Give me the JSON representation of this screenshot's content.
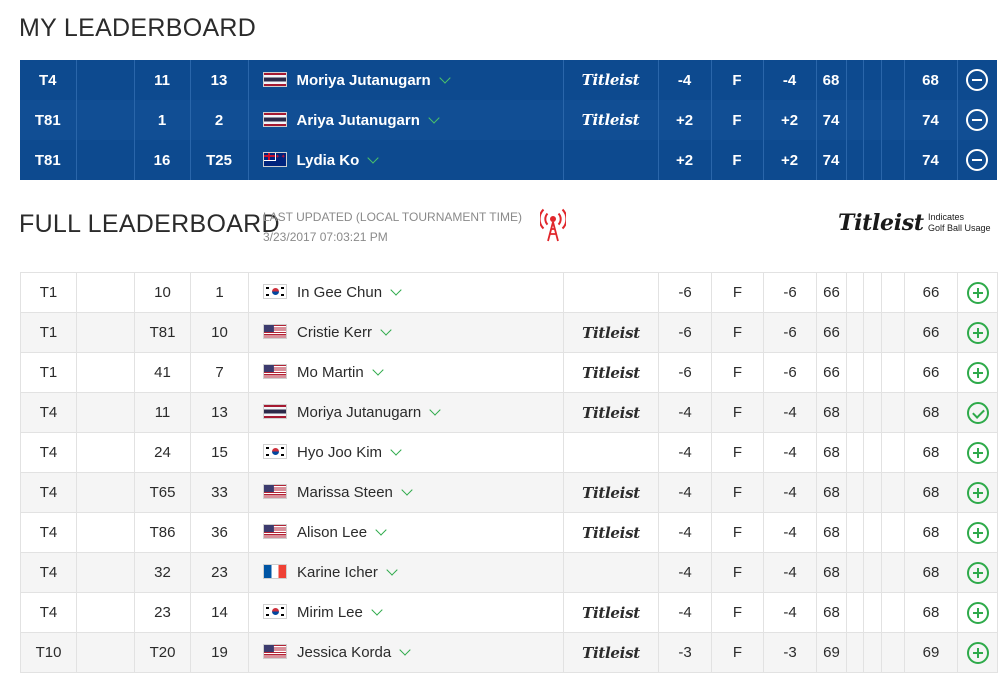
{
  "my_leaderboard": {
    "title": "MY LEADERBOARD",
    "rows": [
      {
        "pos": "T4",
        "c2": "",
        "c3": "11",
        "c4": "13",
        "flag": "th",
        "name": "Moriya Jutanugarn",
        "ball": "Titleist",
        "today": "-4",
        "thru": "F",
        "total": "-4",
        "r1": "68",
        "r2": "",
        "r3": "",
        "r4": "",
        "strokes": "68",
        "action": "minus-circle-icon"
      },
      {
        "pos": "T81",
        "c2": "",
        "c3": "1",
        "c4": "2",
        "flag": "th",
        "name": "Ariya Jutanugarn",
        "ball": "Titleist",
        "today": "+2",
        "thru": "F",
        "total": "+2",
        "r1": "74",
        "r2": "",
        "r3": "",
        "r4": "",
        "strokes": "74",
        "action": "minus-circle-icon"
      },
      {
        "pos": "T81",
        "c2": "",
        "c3": "16",
        "c4": "T25",
        "flag": "nz",
        "name": "Lydia Ko",
        "ball": "",
        "today": "+2",
        "thru": "F",
        "total": "+2",
        "r1": "74",
        "r2": "",
        "r3": "",
        "r4": "",
        "strokes": "74",
        "action": "minus-circle-icon"
      }
    ]
  },
  "full_leaderboard": {
    "title": "FULL LEADERBOARD",
    "last_updated_label": "LAST UPDATED (LOCAL TOURNAMENT TIME)",
    "last_updated_value": "3/23/2017 07:03:21 PM",
    "legend_brand": "Titleist",
    "legend_line1": "Indicates",
    "legend_line2": "Golf Ball Usage",
    "rows": [
      {
        "pos": "T1",
        "c2": "",
        "c3": "10",
        "c4": "1",
        "flag": "kr",
        "name": "In Gee Chun",
        "ball": "",
        "today": "-6",
        "thru": "F",
        "total": "-6",
        "r1": "66",
        "r2": "",
        "r3": "",
        "r4": "",
        "strokes": "66",
        "action": "plus"
      },
      {
        "pos": "T1",
        "c2": "",
        "c3": "T81",
        "c4": "10",
        "flag": "us",
        "name": "Cristie Kerr",
        "ball": "Titleist",
        "today": "-6",
        "thru": "F",
        "total": "-6",
        "r1": "66",
        "r2": "",
        "r3": "",
        "r4": "",
        "strokes": "66",
        "action": "plus"
      },
      {
        "pos": "T1",
        "c2": "",
        "c3": "41",
        "c4": "7",
        "flag": "us",
        "name": "Mo Martin",
        "ball": "Titleist",
        "today": "-6",
        "thru": "F",
        "total": "-6",
        "r1": "66",
        "r2": "",
        "r3": "",
        "r4": "",
        "strokes": "66",
        "action": "plus"
      },
      {
        "pos": "T4",
        "c2": "",
        "c3": "11",
        "c4": "13",
        "flag": "th",
        "name": "Moriya Jutanugarn",
        "ball": "Titleist",
        "today": "-4",
        "thru": "F",
        "total": "-4",
        "r1": "68",
        "r2": "",
        "r3": "",
        "r4": "",
        "strokes": "68",
        "action": "check"
      },
      {
        "pos": "T4",
        "c2": "",
        "c3": "24",
        "c4": "15",
        "flag": "kr",
        "name": "Hyo Joo Kim",
        "ball": "",
        "today": "-4",
        "thru": "F",
        "total": "-4",
        "r1": "68",
        "r2": "",
        "r3": "",
        "r4": "",
        "strokes": "68",
        "action": "plus"
      },
      {
        "pos": "T4",
        "c2": "",
        "c3": "T65",
        "c4": "33",
        "flag": "us",
        "name": "Marissa Steen",
        "ball": "Titleist",
        "today": "-4",
        "thru": "F",
        "total": "-4",
        "r1": "68",
        "r2": "",
        "r3": "",
        "r4": "",
        "strokes": "68",
        "action": "plus"
      },
      {
        "pos": "T4",
        "c2": "",
        "c3": "T86",
        "c4": "36",
        "flag": "us",
        "name": "Alison Lee",
        "ball": "Titleist",
        "today": "-4",
        "thru": "F",
        "total": "-4",
        "r1": "68",
        "r2": "",
        "r3": "",
        "r4": "",
        "strokes": "68",
        "action": "plus"
      },
      {
        "pos": "T4",
        "c2": "",
        "c3": "32",
        "c4": "23",
        "flag": "fr",
        "name": "Karine Icher",
        "ball": "",
        "today": "-4",
        "thru": "F",
        "total": "-4",
        "r1": "68",
        "r2": "",
        "r3": "",
        "r4": "",
        "strokes": "68",
        "action": "plus"
      },
      {
        "pos": "T4",
        "c2": "",
        "c3": "23",
        "c4": "14",
        "flag": "kr",
        "name": "Mirim Lee",
        "ball": "Titleist",
        "today": "-4",
        "thru": "F",
        "total": "-4",
        "r1": "68",
        "r2": "",
        "r3": "",
        "r4": "",
        "strokes": "68",
        "action": "plus"
      },
      {
        "pos": "T10",
        "c2": "",
        "c3": "T20",
        "c4": "19",
        "flag": "us",
        "name": "Jessica Korda",
        "ball": "Titleist",
        "today": "-3",
        "thru": "F",
        "total": "-3",
        "r1": "69",
        "r2": "",
        "r3": "",
        "r4": "",
        "strokes": "69",
        "action": "plus"
      }
    ]
  },
  "colors": {
    "accent_blue": "#0d4a8f",
    "accent_green": "#2eaa4a",
    "live_red": "#e0262b"
  }
}
